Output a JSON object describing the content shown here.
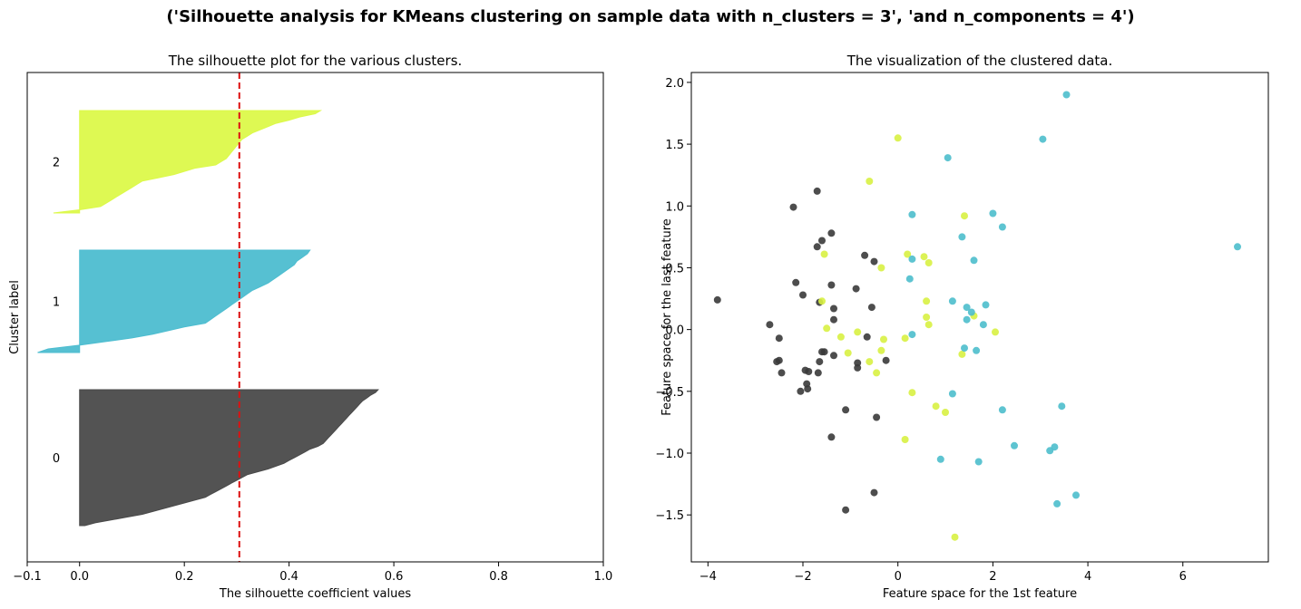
{
  "suptitle": "('Silhouette analysis for KMeans clustering on sample data with n_clusters = 3', 'and n_components = 4')",
  "chart_data": [
    {
      "type": "area",
      "title": "The silhouette plot for the various clusters.",
      "xlabel": "The silhouette coefficient values",
      "ylabel": "Cluster label",
      "xlim": [
        -0.1,
        1.0
      ],
      "xticks": [
        -0.1,
        0.0,
        0.2,
        0.4,
        0.6,
        0.8,
        1.0
      ],
      "xticklabels": [
        "−0.1",
        "0.0",
        "0.2",
        "0.4",
        "0.6",
        "0.8",
        "1.0"
      ],
      "yticks": [],
      "grid": false,
      "average_silhouette_score": 0.305,
      "average_line_color": "#dd1111",
      "clusters": [
        {
          "label": "0",
          "color": "#4a4a4a",
          "values": [
            0.57,
            0.565,
            0.555,
            0.548,
            0.54,
            0.535,
            0.53,
            0.525,
            0.52,
            0.515,
            0.51,
            0.505,
            0.5,
            0.495,
            0.49,
            0.485,
            0.48,
            0.475,
            0.47,
            0.465,
            0.455,
            0.44,
            0.43,
            0.42,
            0.41,
            0.4,
            0.39,
            0.375,
            0.36,
            0.34,
            0.32,
            0.31,
            0.3,
            0.29,
            0.28,
            0.27,
            0.26,
            0.25,
            0.24,
            0.22,
            0.2,
            0.18,
            0.16,
            0.14,
            0.12,
            0.09,
            0.06,
            0.03,
            0.01
          ]
        },
        {
          "label": "1",
          "color": "#4dbdd0",
          "values": [
            0.44,
            0.435,
            0.425,
            0.415,
            0.41,
            0.4,
            0.39,
            0.38,
            0.37,
            0.36,
            0.345,
            0.33,
            0.32,
            0.31,
            0.3,
            0.29,
            0.28,
            0.27,
            0.26,
            0.25,
            0.24,
            0.2,
            0.17,
            0.14,
            0.1,
            0.05,
            0.0,
            -0.06,
            -0.08
          ]
        },
        {
          "label": "2",
          "color": "#dcf94a",
          "values": [
            0.46,
            0.45,
            0.42,
            0.4,
            0.375,
            0.36,
            0.345,
            0.33,
            0.32,
            0.31,
            0.305,
            0.3,
            0.295,
            0.29,
            0.285,
            0.28,
            0.27,
            0.26,
            0.22,
            0.2,
            0.18,
            0.15,
            0.12,
            0.11,
            0.1,
            0.09,
            0.08,
            0.07,
            0.06,
            0.05,
            0.04,
            0.0,
            -0.05
          ]
        }
      ]
    },
    {
      "type": "scatter",
      "title": "The visualization of the clustered data.",
      "xlabel": "Feature space for the 1st feature",
      "ylabel": "Feature space for the last feature",
      "xlim": [
        -4.35,
        7.8
      ],
      "ylim": [
        -1.88,
        2.08
      ],
      "xticks": [
        -4,
        -2,
        0,
        2,
        4,
        6
      ],
      "xticklabels": [
        "−4",
        "−2",
        "0",
        "2",
        "4",
        "6"
      ],
      "yticks": [
        -1.5,
        -1.0,
        -0.5,
        0.0,
        0.5,
        1.0,
        1.5,
        2.0
      ],
      "yticklabels": [
        "−1.5",
        "−1.0",
        "−0.5",
        "0.0",
        "0.5",
        "1.0",
        "1.5",
        "2.0"
      ],
      "grid": false,
      "series": [
        {
          "color": "#3a3a3a",
          "points": [
            [
              -3.8,
              0.24
            ],
            [
              -2.7,
              0.04
            ],
            [
              -2.5,
              -0.07
            ],
            [
              -2.55,
              -0.26
            ],
            [
              -2.5,
              -0.25
            ],
            [
              -2.45,
              -0.35
            ],
            [
              -2.2,
              0.99
            ],
            [
              -2.15,
              0.38
            ],
            [
              -2.05,
              -0.5
            ],
            [
              -2.0,
              0.28
            ],
            [
              -1.95,
              -0.33
            ],
            [
              -1.92,
              -0.44
            ],
            [
              -1.88,
              -0.34
            ],
            [
              -1.9,
              -0.48
            ],
            [
              -1.7,
              1.12
            ],
            [
              -1.7,
              0.67
            ],
            [
              -1.68,
              -0.35
            ],
            [
              -1.6,
              0.72
            ],
            [
              -1.6,
              -0.18
            ],
            [
              -1.55,
              -0.18
            ],
            [
              -1.65,
              0.22
            ],
            [
              -1.65,
              -0.26
            ],
            [
              -1.4,
              0.78
            ],
            [
              -1.4,
              0.36
            ],
            [
              -1.35,
              0.17
            ],
            [
              -1.4,
              -0.87
            ],
            [
              -1.35,
              0.08
            ],
            [
              -1.35,
              -0.21
            ],
            [
              -1.1,
              -0.65
            ],
            [
              -1.1,
              -1.46
            ],
            [
              -0.88,
              0.33
            ],
            [
              -0.85,
              -0.27
            ],
            [
              -0.85,
              -0.31
            ],
            [
              -0.7,
              0.6
            ],
            [
              -0.65,
              -0.06
            ],
            [
              -0.55,
              0.18
            ],
            [
              -0.5,
              0.55
            ],
            [
              -0.5,
              -1.32
            ],
            [
              -0.45,
              -0.71
            ],
            [
              -0.25,
              -0.25
            ]
          ]
        },
        {
          "color": "#d8f142",
          "points": [
            [
              0.0,
              1.55
            ],
            [
              -0.6,
              1.2
            ],
            [
              -1.55,
              0.61
            ],
            [
              -1.6,
              0.23
            ],
            [
              -1.5,
              0.01
            ],
            [
              -1.2,
              -0.06
            ],
            [
              -1.05,
              -0.19
            ],
            [
              -0.85,
              -0.02
            ],
            [
              -0.6,
              -0.26
            ],
            [
              -0.35,
              0.5
            ],
            [
              -0.35,
              -0.17
            ],
            [
              -0.3,
              -0.08
            ],
            [
              -0.45,
              -0.35
            ],
            [
              0.2,
              0.61
            ],
            [
              0.55,
              0.59
            ],
            [
              0.65,
              0.54
            ],
            [
              0.6,
              0.23
            ],
            [
              0.6,
              0.1
            ],
            [
              0.65,
              0.04
            ],
            [
              0.15,
              -0.07
            ],
            [
              0.3,
              -0.51
            ],
            [
              0.15,
              -0.89
            ],
            [
              0.8,
              -0.62
            ],
            [
              1.0,
              -0.67
            ],
            [
              1.2,
              -1.68
            ],
            [
              1.4,
              0.92
            ],
            [
              1.35,
              -0.2
            ],
            [
              1.6,
              0.11
            ],
            [
              2.05,
              -0.02
            ]
          ]
        },
        {
          "color": "#4cbecc",
          "points": [
            [
              3.55,
              1.9
            ],
            [
              3.05,
              1.54
            ],
            [
              1.05,
              1.39
            ],
            [
              7.15,
              0.67
            ],
            [
              0.3,
              0.93
            ],
            [
              2.0,
              0.94
            ],
            [
              2.2,
              0.83
            ],
            [
              1.35,
              0.75
            ],
            [
              0.3,
              0.57
            ],
            [
              1.6,
              0.56
            ],
            [
              0.25,
              0.41
            ],
            [
              1.15,
              0.23
            ],
            [
              1.45,
              0.18
            ],
            [
              1.85,
              0.2
            ],
            [
              1.55,
              0.14
            ],
            [
              1.45,
              0.08
            ],
            [
              1.8,
              0.04
            ],
            [
              0.3,
              -0.04
            ],
            [
              1.4,
              -0.15
            ],
            [
              1.65,
              -0.17
            ],
            [
              1.15,
              -0.52
            ],
            [
              2.2,
              -0.65
            ],
            [
              3.45,
              -0.62
            ],
            [
              2.45,
              -0.94
            ],
            [
              3.2,
              -0.98
            ],
            [
              3.3,
              -0.95
            ],
            [
              0.9,
              -1.05
            ],
            [
              1.7,
              -1.07
            ],
            [
              3.75,
              -1.34
            ],
            [
              3.35,
              -1.41
            ]
          ]
        }
      ]
    }
  ]
}
